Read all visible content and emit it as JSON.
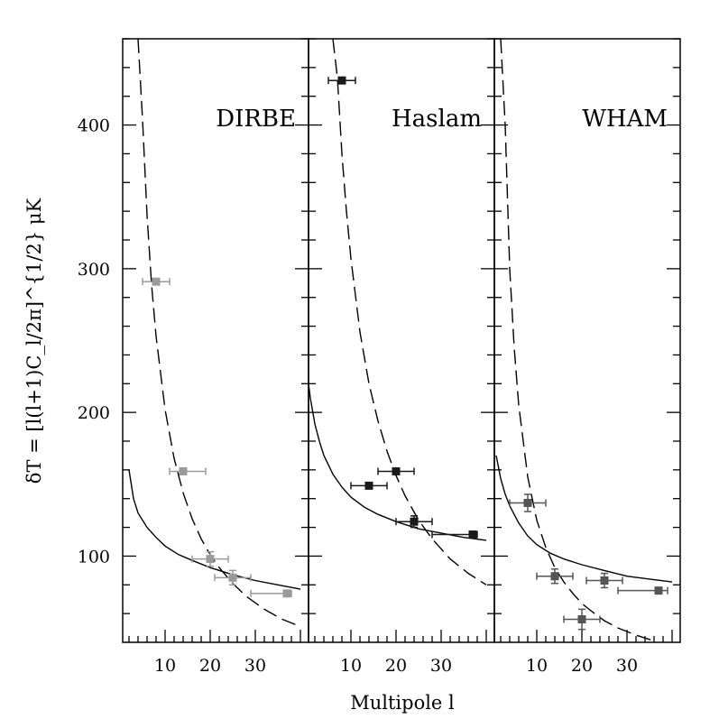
{
  "chart_data": {
    "type": "scatter",
    "ylabel": "δT = [l(l+1)C_l/2π]^{1/2} μK",
    "xlabel": "Multipole l",
    "ylim": [
      40,
      460
    ],
    "ytick_values": [
      100,
      200,
      300,
      400
    ],
    "ytick_labels": [
      "100",
      "200",
      "300",
      "400"
    ],
    "xlim": [
      0,
      40
    ],
    "xtick_values": [
      10,
      20,
      30
    ],
    "xtick_labels": [
      "10",
      "20",
      "30"
    ],
    "grid": false,
    "panels": [
      {
        "label": "DIRBE",
        "point_color": "#9a9a9a",
        "points": [
          {
            "x": 8,
            "y": 291,
            "xerr": [
              5,
              11
            ],
            "yerr": 0
          },
          {
            "x": 14,
            "y": 159,
            "xerr": [
              11,
              19
            ],
            "yerr": 0
          },
          {
            "x": 20,
            "y": 98,
            "xerr": [
              16,
              24
            ],
            "yerr": 5
          },
          {
            "x": 25,
            "y": 85,
            "xerr": [
              21,
              29
            ],
            "yerr": 5
          },
          {
            "x": 37,
            "y": 74,
            "xerr": [
              29,
              38
            ],
            "yerr": 0
          }
        ],
        "solid_curve": {
          "x": [
            2,
            3,
            4,
            6,
            8,
            10,
            13,
            16,
            20,
            25,
            30,
            35,
            40
          ],
          "y": [
            160,
            140,
            130,
            120,
            113,
            107,
            101,
            97,
            92,
            87,
            83,
            80,
            77
          ]
        },
        "dashed_curve": {
          "x": [
            4,
            5,
            6,
            7,
            8,
            10,
            12,
            14,
            16,
            18,
            20,
            22,
            25,
            28,
            32,
            36,
            40
          ],
          "y": [
            460,
            404,
            337,
            289,
            253,
            202,
            168,
            144,
            126,
            112,
            101,
            92,
            81,
            72,
            63,
            56,
            51
          ]
        }
      },
      {
        "label": "Haslam",
        "point_color": "#1a1a1a",
        "points": [
          {
            "x": 8,
            "y": 431,
            "xerr": [
              5,
              11
            ],
            "yerr": 0
          },
          {
            "x": 14,
            "y": 149,
            "xerr": [
              10,
              18
            ],
            "yerr": 0
          },
          {
            "x": 20,
            "y": 159,
            "xerr": [
              16,
              24
            ],
            "yerr": 0
          },
          {
            "x": 24,
            "y": 124,
            "xerr": [
              20,
              28
            ],
            "yerr": 4
          },
          {
            "x": 37,
            "y": 115,
            "xerr": [
              28,
              38
            ],
            "yerr": 0
          }
        ],
        "solid_curve": {
          "x": [
            0,
            1,
            2,
            3,
            4,
            6,
            8,
            10,
            13,
            16,
            20,
            25,
            30,
            35,
            40
          ],
          "y": [
            235,
            210,
            192,
            180,
            170,
            157,
            148,
            141,
            134,
            129,
            124,
            119,
            116,
            113,
            111
          ]
        },
        "dashed_curve": {
          "x": [
            6,
            7,
            8,
            9,
            10,
            12,
            14,
            16,
            18,
            20,
            22,
            25,
            28,
            32,
            36,
            40
          ],
          "y": [
            460,
            433,
            380,
            340,
            307,
            256,
            220,
            194,
            173,
            156,
            142,
            125,
            112,
            98,
            88,
            80
          ]
        }
      },
      {
        "label": "WHAM",
        "point_color": "#555555",
        "points": [
          {
            "x": 8,
            "y": 137,
            "xerr": [
              4,
              12
            ],
            "yerr": 6
          },
          {
            "x": 14,
            "y": 86,
            "xerr": [
              10,
              18
            ],
            "yerr": 5
          },
          {
            "x": 20,
            "y": 56,
            "xerr": [
              16,
              24
            ],
            "yerr": 7
          },
          {
            "x": 25,
            "y": 83,
            "xerr": [
              21,
              29
            ],
            "yerr": 5
          },
          {
            "x": 37,
            "y": 76,
            "xerr": [
              28,
              39
            ],
            "yerr": 0
          }
        ],
        "solid_curve": {
          "x": [
            1,
            2,
            3,
            4,
            6,
            8,
            10,
            13,
            16,
            20,
            25,
            30,
            35,
            40
          ],
          "y": [
            170,
            154,
            143,
            135,
            123,
            114,
            108,
            102,
            98,
            94,
            90,
            86,
            84,
            82
          ]
        },
        "dashed_curve": {
          "x": [
            2,
            3,
            4,
            5,
            6,
            8,
            10,
            12,
            14,
            16,
            18,
            20,
            22,
            25,
            28,
            32,
            36
          ],
          "y": [
            460,
            400,
            300,
            245,
            205,
            155,
            125,
            106,
            92,
            82,
            74,
            67,
            62,
            55,
            50,
            45,
            41
          ]
        }
      }
    ]
  }
}
